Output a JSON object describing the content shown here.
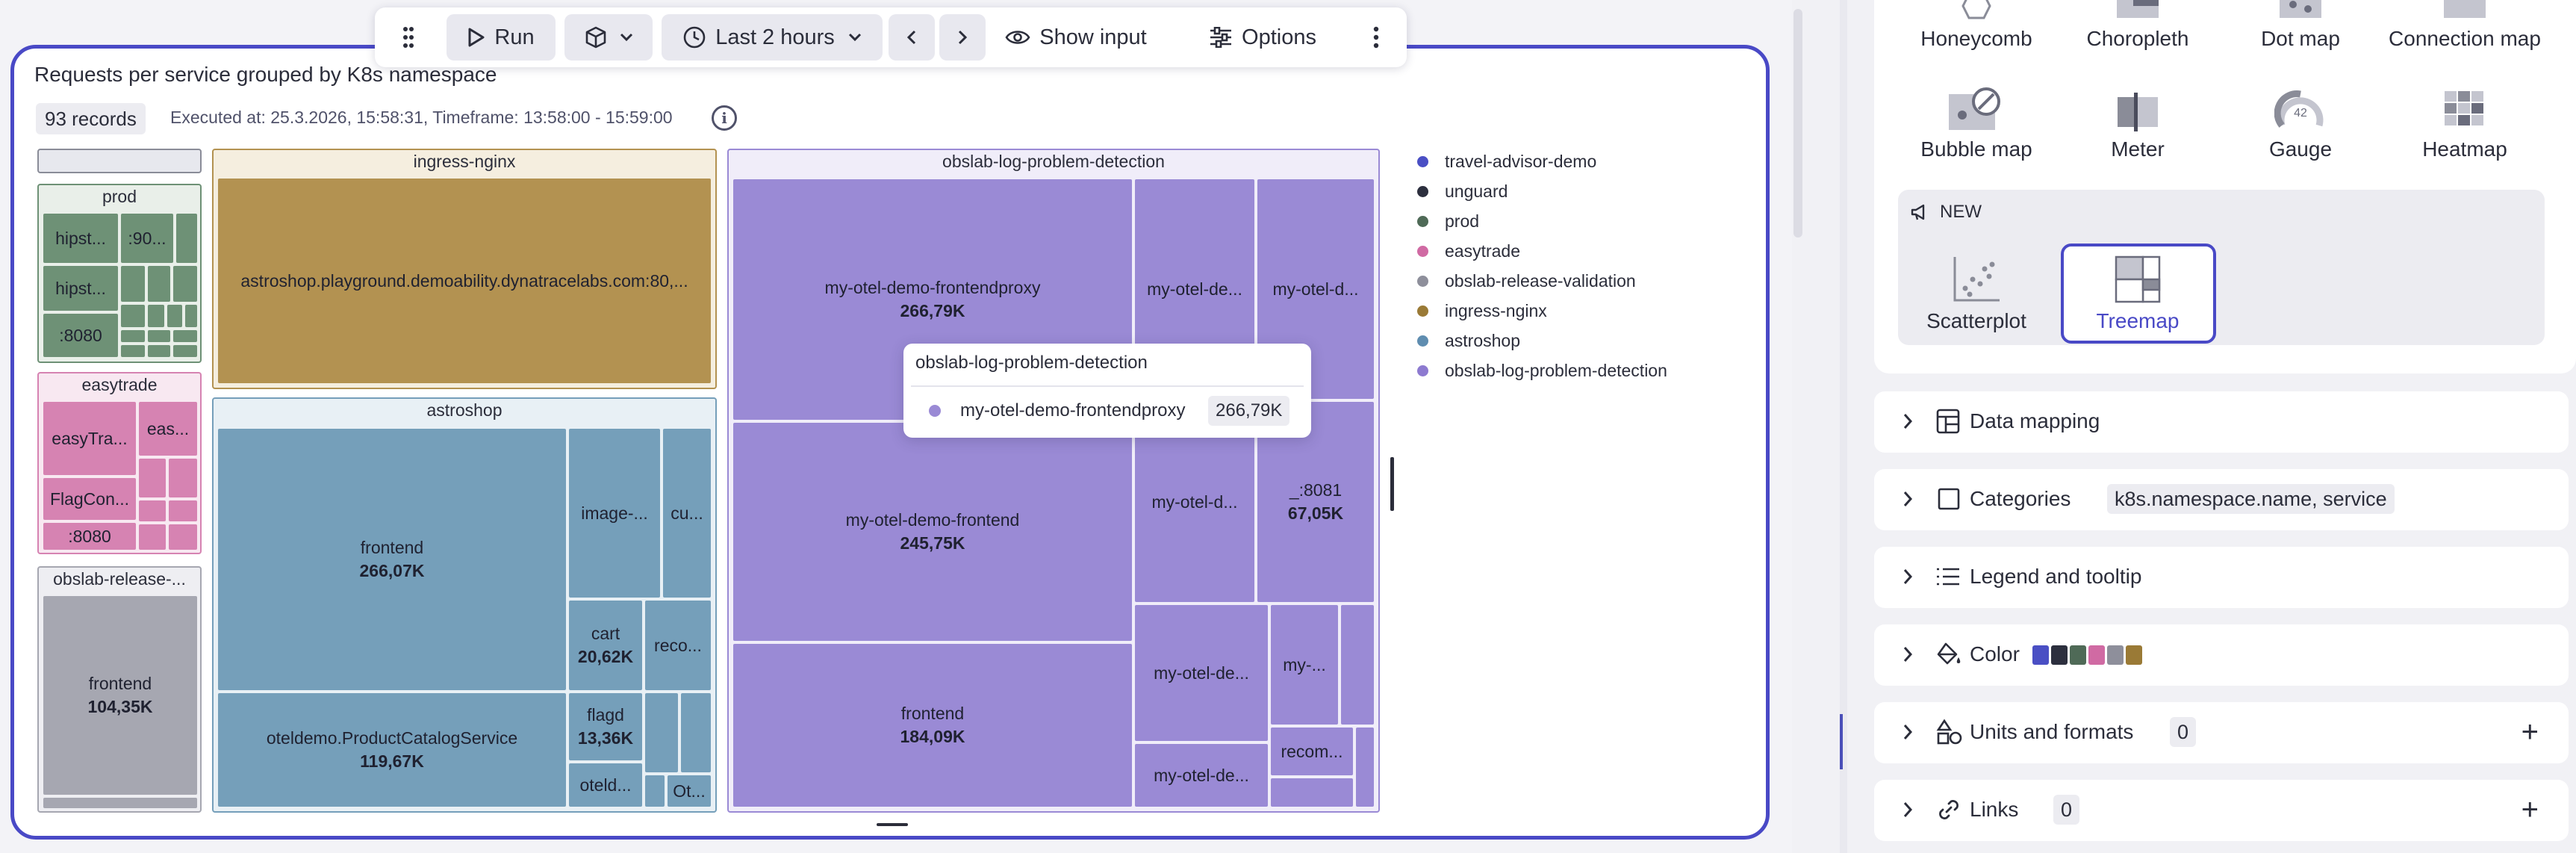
{
  "toolbar": {
    "run": "Run",
    "timeframe": "Last 2 hours",
    "show_input": "Show input",
    "options": "Options"
  },
  "tile": {
    "title": "Requests per service grouped by K8s namespace",
    "records": "93 records",
    "executed": "Executed at: 25.3.2026, 15:58:31, Timeframe: 13:58:00 - 15:59:00"
  },
  "treemap": {
    "groups": {
      "prod": "prod",
      "easytrade": "easytrade",
      "obslab_release": "obslab-release-...",
      "ingress": "ingress-nginx",
      "astroshop": "astroshop",
      "log_problem": "obslab-log-problem-detection"
    },
    "cells": {
      "prod_hipst1": "hipst...",
      "prod_90": ":90...",
      "prod_hipst2": "hipst...",
      "prod_8080": ":8080",
      "easy_easytra": "easyTra...",
      "easy_eas": "eas...",
      "easy_flagcon": "FlagCon...",
      "easy_8080": ":8080",
      "obs_frontend": "frontend",
      "obs_frontend_v": "104,35K",
      "ingress_astro": "astroshop.playground.demoability.dynatracelabs.com:80,...",
      "astro_frontend": "frontend",
      "astro_frontend_v": "266,07K",
      "astro_image": "image-...",
      "astro_cu": "cu...",
      "astro_cart": "cart",
      "astro_cart_v": "20,62K",
      "astro_reco": "reco...",
      "astro_catalog": "oteldemo.ProductCatalogService",
      "astro_catalog_v": "119,67K",
      "astro_flagd": "flagd",
      "astro_flagd_v": "13,36K",
      "astro_oteld": "oteld...",
      "astro_ot": "Ot...",
      "log_fproxy": "my-otel-demo-frontendproxy",
      "log_fproxy_v": "266,79K",
      "log_de1": "my-otel-de...",
      "log_d1": "my-otel-d...",
      "log_frontend2": "my-otel-demo-frontend",
      "log_frontend2_v": "245,75K",
      "log_d2": "my-otel-d...",
      "log_8081": "_:8081",
      "log_8081_v": "67,05K",
      "log_frontend": "frontend",
      "log_frontend_v": "184,09K",
      "log_del": "my-otel-de...",
      "log_my": "my-...",
      "log_de3": "my-otel-de...",
      "log_recom": "recom..."
    }
  },
  "tooltip": {
    "title": "obslab-log-problem-detection",
    "name": "my-otel-demo-frontendproxy",
    "value": "266,79K"
  },
  "legend": [
    {
      "label": "travel-advisor-demo",
      "color": "#4a4fc4"
    },
    {
      "label": "unguard",
      "color": "#2c2f3e"
    },
    {
      "label": "prod",
      "color": "#4f6a57"
    },
    {
      "label": "easytrade",
      "color": "#d06aa3"
    },
    {
      "label": "obslab-release-validation",
      "color": "#8e8f9b"
    },
    {
      "label": "ingress-nginx",
      "color": "#9a7a36"
    },
    {
      "label": "astroshop",
      "color": "#5f8db0"
    },
    {
      "label": "obslab-log-problem-detection",
      "color": "#8d7ad0"
    }
  ],
  "viz_picker": {
    "row1": [
      "Honeycomb",
      "Choropleth",
      "Dot map",
      "Connection map"
    ],
    "row2": [
      "Bubble map",
      "Meter",
      "Gauge",
      "Heatmap"
    ],
    "gauge_value": "42",
    "new_label": "NEW",
    "new_items": [
      "Scatterplot",
      "Treemap"
    ]
  },
  "sections": {
    "data_mapping": "Data mapping",
    "categories": "Categories",
    "categories_value": "k8s.namespace.name, service",
    "legend_tooltip": "Legend and tooltip",
    "color": "Color",
    "color_swatches": [
      "#4a4fc4",
      "#2c2f3e",
      "#4f6a57",
      "#d06aa3",
      "#8e8f9b",
      "#9a7a36"
    ],
    "units": "Units and formats",
    "units_count": "0",
    "links": "Links",
    "links_count": "0"
  }
}
